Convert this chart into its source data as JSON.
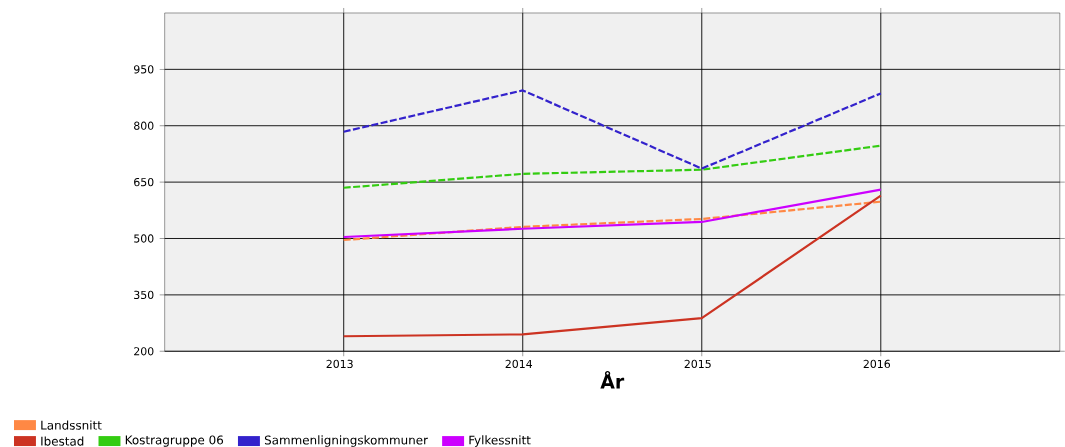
{
  "chart_data": {
    "type": "line",
    "xlabel": "År",
    "x": [
      2013,
      2014,
      2015,
      2016
    ],
    "xlim": [
      2012,
      2017
    ],
    "xticks": [
      2013,
      2014,
      2015,
      2016
    ],
    "ylim": [
      200,
      1100
    ],
    "yticks": [
      200,
      350,
      500,
      650,
      800,
      950
    ],
    "grid": true,
    "legend": "bottom",
    "marker": "none",
    "series": [
      {
        "name": "Landssnitt",
        "color": "#ff8844",
        "line_style": "dashed",
        "values": [
          496,
          531,
          552,
          598
        ]
      },
      {
        "name": "Ibestad",
        "color": "#cc3322",
        "line_style": "solid",
        "values": [
          240,
          245,
          288,
          614
        ]
      },
      {
        "name": "Kostragruppe 06",
        "color": "#33cc11",
        "line_style": "dashed",
        "values": [
          635,
          672,
          683,
          747
        ]
      },
      {
        "name": "Sammenligningskommuner",
        "color": "#3322cc",
        "line_style": "dashed",
        "values": [
          784,
          894,
          686,
          886
        ]
      },
      {
        "name": "Fylkessnitt",
        "color": "#cc00ff",
        "line_style": "solid",
        "values": [
          504,
          526,
          544,
          630
        ]
      }
    ]
  }
}
